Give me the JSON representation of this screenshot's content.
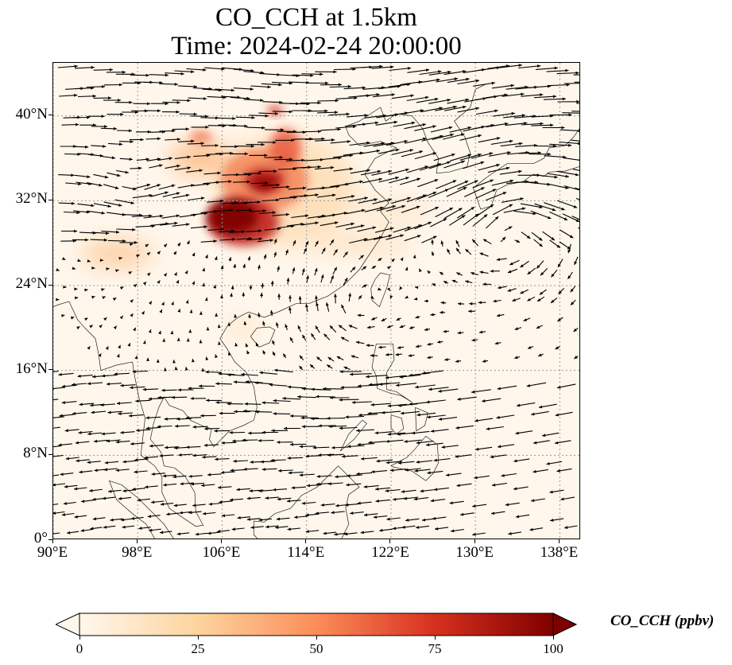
{
  "title": {
    "line1": "CO_CCH at 1.5km",
    "line2": "Time: 2024-02-24 20:00:00"
  },
  "map": {
    "lon_range": [
      90,
      140
    ],
    "lat_range": [
      0,
      45
    ],
    "x_ticks": [
      {
        "value": 90,
        "label": "90°E"
      },
      {
        "value": 98,
        "label": "98°E"
      },
      {
        "value": 106,
        "label": "106°E"
      },
      {
        "value": 114,
        "label": "114°E"
      },
      {
        "value": 122,
        "label": "122°E"
      },
      {
        "value": 130,
        "label": "130°E"
      },
      {
        "value": 138,
        "label": "138°E"
      }
    ],
    "y_ticks": [
      {
        "value": 0,
        "label": "0°"
      },
      {
        "value": 8,
        "label": "8°N"
      },
      {
        "value": 16,
        "label": "16°N"
      },
      {
        "value": 24,
        "label": "24°N"
      },
      {
        "value": 32,
        "label": "32°N"
      },
      {
        "value": 40,
        "label": "40°N"
      }
    ],
    "gridlines": true,
    "field": "CO_CCH",
    "plume_center": [
      107,
      30
    ],
    "plume_max_ppbv": 100
  },
  "colorbar": {
    "label": "CO_CCH (ppbv)",
    "min": 0,
    "max": 100,
    "extend": "both",
    "ticks": [
      {
        "value": 0,
        "label": "0"
      },
      {
        "value": 25,
        "label": "25"
      },
      {
        "value": 50,
        "label": "50"
      },
      {
        "value": 75,
        "label": "75"
      },
      {
        "value": 100,
        "label": "100"
      }
    ],
    "colors": [
      "#fff7ec",
      "#fdd49e",
      "#fc8d59",
      "#d7301f",
      "#7f0000"
    ]
  }
}
